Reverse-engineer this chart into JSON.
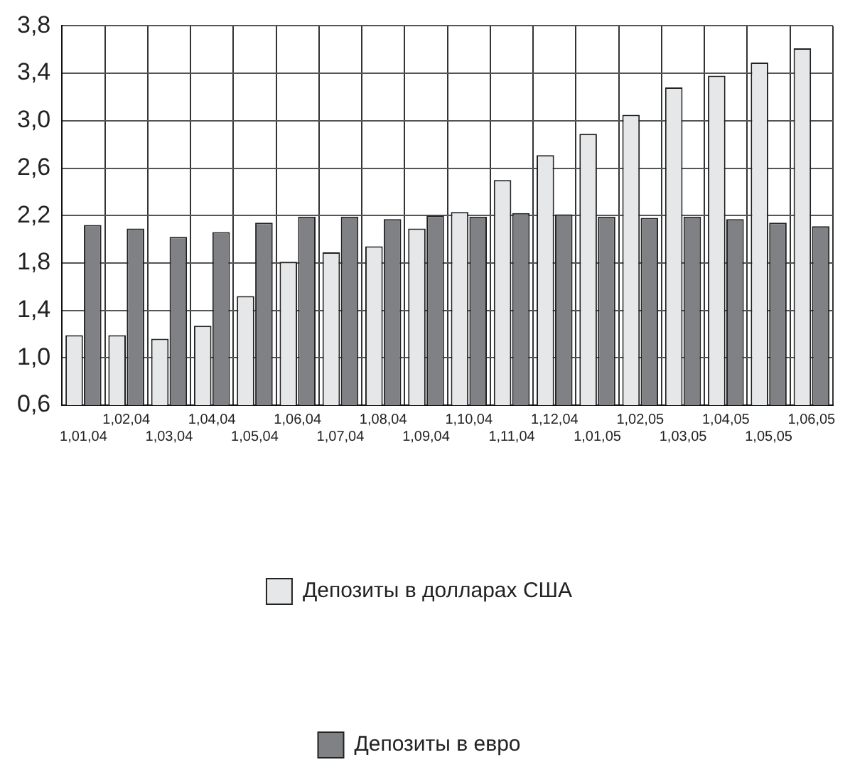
{
  "chart_data": {
    "type": "bar",
    "categories": [
      "1,01,04",
      "1,02,04",
      "1,03,04",
      "1,04,04",
      "1,05,04",
      "1,06,04",
      "1,07,04",
      "1,08,04",
      "1,09,04",
      "1,10,04",
      "1,11,04",
      "1,12,04",
      "1,01,05",
      "1,02,05",
      "1,03,05",
      "1,04,05",
      "1,05,05",
      "1,06,05"
    ],
    "series": [
      {
        "name": "Депозиты в долларах США",
        "color": "#e6e7e8",
        "values": [
          1.19,
          1.19,
          1.16,
          1.27,
          1.52,
          1.81,
          1.89,
          1.94,
          2.09,
          2.23,
          2.5,
          2.71,
          2.89,
          3.05,
          3.28,
          3.38,
          3.49,
          3.61
        ]
      },
      {
        "name": "Депозиты в евро",
        "color": "#808184",
        "values": [
          2.12,
          2.09,
          2.02,
          2.06,
          2.14,
          2.19,
          2.19,
          2.17,
          2.2,
          2.19,
          2.22,
          2.21,
          2.19,
          2.18,
          2.19,
          2.17,
          2.14,
          2.11
        ]
      }
    ],
    "ylim": [
      0.6,
      3.8
    ],
    "yticks": [
      {
        "value": 0.6,
        "label": "0,6"
      },
      {
        "value": 1.0,
        "label": "1,0"
      },
      {
        "value": 1.4,
        "label": "1,4"
      },
      {
        "value": 1.8,
        "label": "1,8"
      },
      {
        "value": 2.2,
        "label": "2,2"
      },
      {
        "value": 2.6,
        "label": "2,6"
      },
      {
        "value": 3.0,
        "label": "3,0"
      },
      {
        "value": 3.4,
        "label": "3,4"
      },
      {
        "value": 3.8,
        "label": "3,8"
      }
    ],
    "grid": true,
    "legend": "bottom"
  }
}
